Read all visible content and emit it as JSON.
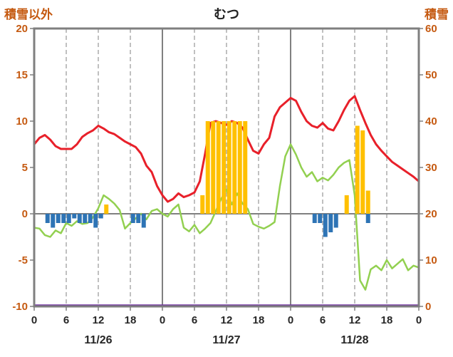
{
  "header": {
    "left_axis_title": "積雪以外",
    "title": "むつ",
    "right_axis_title": "積雪"
  },
  "colors": {
    "axis_title": "#c55a11",
    "y_tick_label": "#c55a11",
    "x_tick_label": "#262626",
    "date_label": "#262626",
    "border": "#7f7f7f",
    "grid_solid": "#808080",
    "grid_dashed": "#a6a6a6",
    "zero_line": "#808080",
    "red_line": "#e8202a",
    "green_line": "#92d050",
    "orange_bar": "#ffc000",
    "blue_bar": "#2e74b5",
    "purple_line": "#7030a0"
  },
  "chart_data": {
    "type": "line",
    "title": "むつ",
    "left_axis": {
      "label": "積雪以外",
      "min": -10,
      "max": 20,
      "ticks": [
        20,
        15,
        10,
        5,
        0,
        -5,
        -10
      ],
      "tick_labels": [
        "20",
        "15",
        "10",
        "5",
        "0",
        "-5",
        "-10"
      ]
    },
    "right_axis": {
      "label": "積雪",
      "min": 0,
      "max": 60,
      "ticks": [
        60,
        50,
        40,
        30,
        20,
        10,
        0
      ],
      "tick_labels": [
        "60",
        "50",
        "40",
        "30",
        "20",
        "10",
        "0"
      ]
    },
    "x_axis": {
      "min_hour": 0,
      "max_hour": 72,
      "tick_positions": [
        0,
        6,
        12,
        18,
        24,
        30,
        36,
        42,
        48,
        54,
        60,
        66,
        72
      ],
      "tick_labels": [
        "0",
        "6",
        "12",
        "18",
        "0",
        "6",
        "12",
        "18",
        "0",
        "6",
        "12",
        "18",
        "0"
      ],
      "day_boundaries": [
        24,
        48
      ],
      "date_labels": [
        {
          "label": "11/26",
          "center_hour": 12
        },
        {
          "label": "11/27",
          "center_hour": 36
        },
        {
          "label": "11/28",
          "center_hour": 60
        }
      ]
    },
    "grid": {
      "vertical_dashed_every_hours": 6,
      "horizontal_zero_line": true,
      "legend": "none"
    },
    "series": [
      {
        "name": "temperature-red-line",
        "type": "line",
        "axis": "left",
        "color": "#e8202a",
        "width": 3,
        "values": [
          7.5,
          8.2,
          8.5,
          8.0,
          7.3,
          7.0,
          7.0,
          7.0,
          7.5,
          8.3,
          8.7,
          9.0,
          9.5,
          9.2,
          8.8,
          8.6,
          8.2,
          7.8,
          7.5,
          7.2,
          6.5,
          5.2,
          4.5,
          3.0,
          2.0,
          1.3,
          1.6,
          2.2,
          1.8,
          2.0,
          2.3,
          3.5,
          6.5,
          9.8,
          10.0,
          9.8,
          9.6,
          10.0,
          9.8,
          9.3,
          8.0,
          6.8,
          6.5,
          7.5,
          8.2,
          10.5,
          11.5,
          12.0,
          12.5,
          12.2,
          11.0,
          10.0,
          9.5,
          9.3,
          9.8,
          9.2,
          9.0,
          10.0,
          11.2,
          12.2,
          12.7,
          11.2,
          9.8,
          8.5,
          7.5,
          6.8,
          6.2,
          5.6,
          5.2,
          4.8,
          4.4,
          4.0,
          3.5
        ]
      },
      {
        "name": "green-line",
        "type": "line",
        "axis": "left",
        "color": "#92d050",
        "width": 2.5,
        "values": [
          -1.5,
          -1.6,
          -2.3,
          -2.5,
          -1.8,
          -2.1,
          -1.0,
          -1.3,
          -0.8,
          -1.1,
          -1.0,
          -0.4,
          0.6,
          2.0,
          1.6,
          1.1,
          0.4,
          -1.6,
          -1.0,
          -0.5,
          0.0,
          -0.6,
          0.3,
          0.5,
          0.0,
          -0.3,
          0.5,
          1.0,
          -1.5,
          -1.9,
          -1.2,
          -2.1,
          -1.6,
          -1.0,
          0.3,
          1.6,
          2.6,
          1.0,
          2.2,
          1.1,
          0.5,
          -1.1,
          -1.4,
          -1.6,
          -1.3,
          -0.9,
          3.0,
          6.2,
          7.5,
          6.4,
          5.0,
          4.0,
          4.5,
          3.5,
          3.9,
          3.6,
          4.2,
          5.0,
          5.5,
          5.8,
          2.0,
          -7.2,
          -8.2,
          -6.0,
          -5.6,
          -6.1,
          -5.0,
          -5.9,
          -5.4,
          -4.9,
          -6.1,
          -5.6,
          -5.8
        ]
      },
      {
        "name": "orange-bars",
        "type": "bar",
        "axis": "left",
        "color": "#ffc000",
        "values": [
          0,
          0,
          0,
          0,
          0,
          0,
          0,
          0,
          0,
          0,
          0,
          0,
          0,
          1,
          0,
          0,
          0,
          0,
          0,
          0,
          0,
          0,
          0,
          0,
          0,
          0,
          0,
          0,
          0,
          0,
          0,
          2,
          10,
          10,
          10,
          10,
          10,
          10,
          10,
          10,
          0,
          0,
          0,
          0,
          0,
          0,
          0,
          0,
          0,
          0,
          0,
          0,
          0,
          0,
          0,
          0,
          0,
          0,
          2,
          0,
          9.5,
          9,
          2.5,
          0,
          0,
          0,
          0,
          0,
          0,
          0,
          0,
          0
        ]
      },
      {
        "name": "blue-bars",
        "type": "bar",
        "axis": "left",
        "color": "#2e74b5",
        "values": [
          0,
          0,
          -1,
          -1.5,
          -1,
          -1,
          -1,
          -0.5,
          -1,
          -1,
          -1,
          -1.5,
          -0.5,
          0,
          0,
          0,
          0,
          0,
          -1,
          -1,
          -1.5,
          0,
          0,
          0,
          0,
          0,
          0,
          0,
          0,
          0,
          0,
          0,
          0,
          0,
          0,
          0,
          0,
          0,
          0,
          0,
          0,
          0,
          0,
          0,
          0,
          0,
          0,
          0,
          0,
          0,
          0,
          0,
          -1,
          -1,
          -2.5,
          -2,
          -1.5,
          0,
          0,
          0,
          0,
          0,
          -1,
          0,
          0,
          0,
          0,
          0,
          0,
          0,
          0,
          0
        ]
      },
      {
        "name": "snow-depth-purple-line",
        "type": "constant-line",
        "axis": "right",
        "color": "#7030a0",
        "width": 2.5,
        "constant": 0
      }
    ]
  }
}
